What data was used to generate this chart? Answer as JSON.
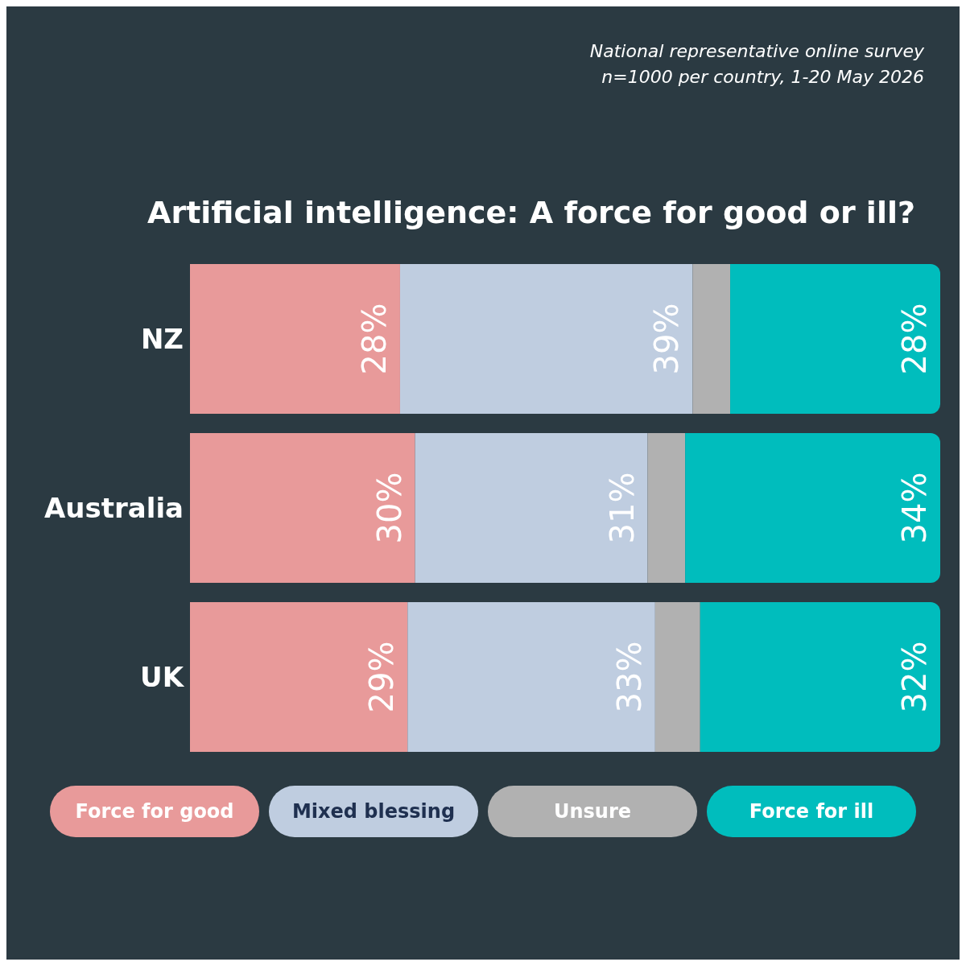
{
  "chart_data": {
    "type": "bar",
    "orientation": "horizontal",
    "stacked": true,
    "title": "Artificial intelligence: A force for good or ill?",
    "annotations": [
      "National representative online survey",
      "n=1000 per country,  1-20 May 2026"
    ],
    "categories": [
      "NZ",
      "Australia",
      "UK"
    ],
    "series": [
      {
        "name": "Force for good",
        "color": "#e89a9a",
        "values": [
          28,
          30,
          29
        ],
        "value_labels": [
          "28%",
          "30%",
          "29%"
        ]
      },
      {
        "name": "Mixed blessing",
        "color": "#bfcde0",
        "values": [
          39,
          31,
          33
        ],
        "value_labels": [
          "39%",
          "31%",
          "33%"
        ]
      },
      {
        "name": "Unsure",
        "color": "#b1b1b1",
        "values": [
          5,
          5,
          6
        ],
        "value_labels": [
          null,
          null,
          null
        ]
      },
      {
        "name": "Force for ill",
        "color": "#00bdbd",
        "values": [
          28,
          34,
          32
        ],
        "value_labels": [
          "28%",
          "34%",
          "32%"
        ]
      }
    ],
    "xlim": [
      0,
      100
    ],
    "tick_labels": "y",
    "legend": "bottom",
    "grid": false
  }
}
